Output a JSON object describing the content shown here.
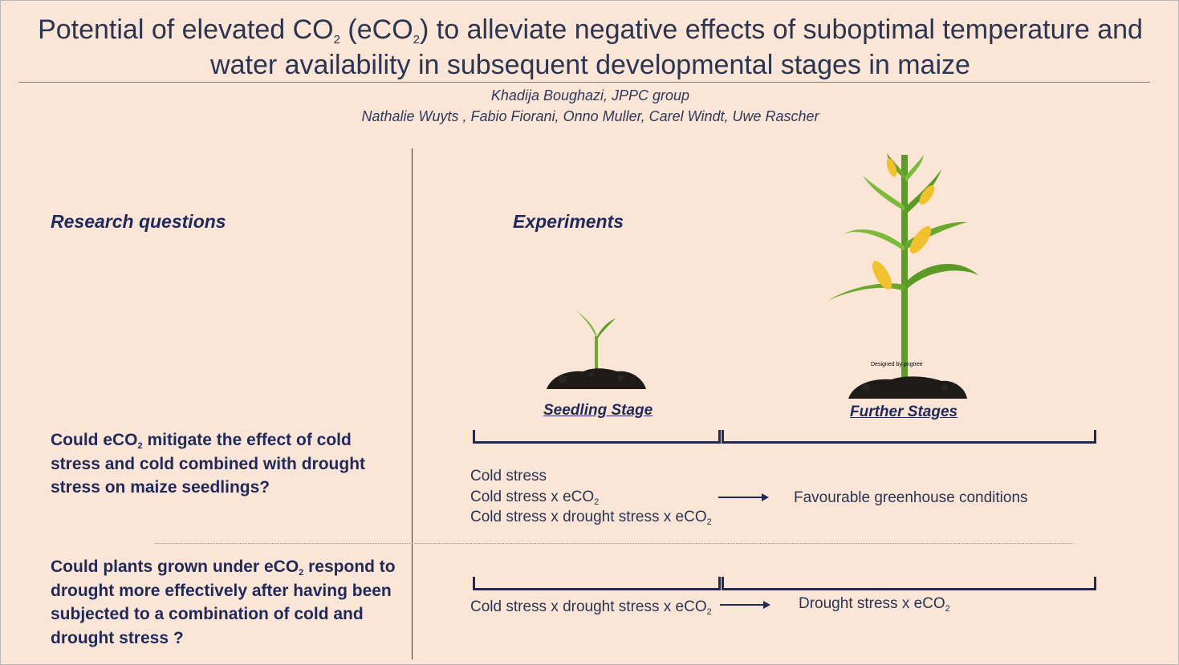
{
  "title": {
    "line1_a": "Potential of elevated CO",
    "sub": "2",
    "line1_b": " (eCO",
    "line1_c": ") to alleviate negative effects of suboptimal temperature and",
    "line2": "water availability in subsequent developmental stages in maize"
  },
  "authors": {
    "line1": "Khadija Boughazi, JPPC group",
    "line2": "Nathalie Wuyts , Fabio Fiorani, Onno Muller, Carel Windt, Uwe Rascher"
  },
  "left": {
    "heading": "Research questions",
    "q1": {
      "a": "Could eCO",
      "sub": "2",
      "b": " mitigate the effect of cold stress and cold combined with drought stress on maize seedlings?"
    },
    "q2": {
      "a": "Could plants grown under eCO",
      "sub": "2",
      "b": " respond to drought more effectively after having been subjected to a combination of cold and drought stress ?"
    }
  },
  "right": {
    "heading": "Experiments",
    "seedling_label": "Seedling Stage",
    "further_label": "Further Stages",
    "watermark": "Designed by pngtree",
    "row1": {
      "l1": "Cold stress",
      "l2_a": "Cold stress x eCO",
      "l2_sub": "2",
      "l3_a": "Cold stress x drought stress x eCO",
      "l3_sub": "2",
      "result": "Favourable greenhouse conditions"
    },
    "row2": {
      "left_a": "Cold stress x drought stress x eCO",
      "left_sub": "2",
      "result_a": "Drought stress x eCO",
      "result_sub": "2"
    }
  },
  "colors": {
    "background": "#fbe5d6",
    "text": "#1f2a5a",
    "leaf": "#6aa92e",
    "soil": "#1e1a18",
    "corn": "#f2c12e"
  }
}
